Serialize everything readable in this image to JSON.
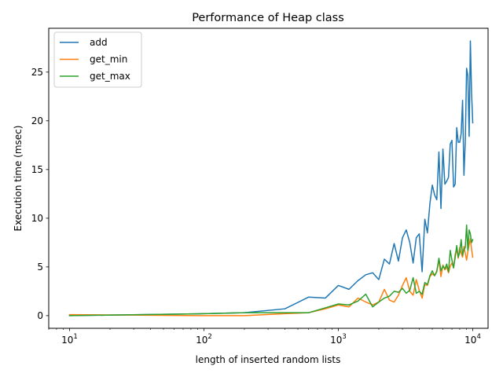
{
  "chart_data": {
    "type": "line",
    "title": "Performance of Heap class",
    "xlabel": "length of inserted random lists",
    "ylabel": "Execution time (msec)",
    "xscale": "log",
    "xlim": [
      7.0,
      13000
    ],
    "ylim": [
      -1.3,
      29.5
    ],
    "x_ticks": [
      {
        "value": 10,
        "base": "10",
        "exp": "1"
      },
      {
        "value": 100,
        "base": "10",
        "exp": "2"
      },
      {
        "value": 1000,
        "base": "10",
        "exp": "3"
      },
      {
        "value": 10000,
        "base": "10",
        "exp": "4"
      }
    ],
    "y_ticks": [
      0,
      5,
      10,
      15,
      20,
      25
    ],
    "legend_position": "top-left",
    "series": [
      {
        "name": "add",
        "color": "#1f77b4",
        "x": [
          10,
          100,
          200,
          400,
          600,
          800,
          1000,
          1200,
          1400,
          1600,
          1800,
          2000,
          2200,
          2400,
          2600,
          2800,
          3000,
          3200,
          3400,
          3600,
          3800,
          4000,
          4200,
          4400,
          4600,
          4800,
          5000,
          5200,
          5400,
          5600,
          5800,
          6000,
          6200,
          6400,
          6600,
          6800,
          7000,
          7200,
          7400,
          7600,
          7800,
          8000,
          8200,
          8400,
          8600,
          8800,
          9000,
          9200,
          9400,
          9600,
          9800,
          10000
        ],
        "y": [
          0.0,
          0.2,
          0.3,
          0.7,
          1.9,
          1.8,
          3.1,
          2.7,
          3.6,
          4.2,
          4.4,
          3.7,
          5.8,
          5.3,
          7.4,
          5.6,
          8.0,
          8.8,
          7.5,
          5.4,
          8.0,
          8.4,
          4.5,
          9.9,
          8.5,
          11.5,
          13.4,
          12.4,
          11.9,
          16.8,
          11.0,
          17.1,
          13.5,
          13.8,
          14.2,
          17.6,
          18.0,
          13.2,
          13.5,
          19.3,
          17.8,
          17.8,
          18.7,
          22.1,
          14.4,
          17.9,
          25.4,
          24.6,
          18.4,
          28.2,
          22.8,
          19.8
        ]
      },
      {
        "name": "get_min",
        "color": "#ff7f0e",
        "x": [
          10,
          100,
          200,
          400,
          600,
          800,
          1000,
          1200,
          1400,
          1600,
          1800,
          2000,
          2200,
          2400,
          2600,
          2800,
          3000,
          3200,
          3400,
          3600,
          3800,
          4000,
          4200,
          4400,
          4600,
          4800,
          5000,
          5200,
          5400,
          5600,
          5800,
          6000,
          6200,
          6400,
          6600,
          6800,
          7000,
          7200,
          7400,
          7600,
          7800,
          8000,
          8200,
          8400,
          8600,
          8800,
          9000,
          9200,
          9400,
          9600,
          9800,
          10000
        ],
        "y": [
          0.1,
          0.0,
          0.0,
          0.2,
          0.3,
          0.7,
          1.1,
          0.9,
          1.8,
          1.4,
          1.1,
          1.4,
          2.7,
          1.6,
          1.4,
          2.1,
          3.1,
          3.9,
          2.5,
          2.1,
          3.7,
          2.6,
          1.8,
          3.2,
          3.1,
          4.0,
          4.3,
          4.1,
          4.6,
          5.7,
          4.0,
          5.2,
          4.7,
          5.0,
          4.4,
          5.1,
          5.4,
          4.9,
          6.3,
          6.8,
          5.9,
          7.0,
          6.4,
          6.0,
          7.1,
          6.4,
          5.7,
          6.6,
          7.3,
          7.9,
          6.8,
          6.0
        ]
      },
      {
        "name": "get_max",
        "color": "#2ca02c",
        "x": [
          10,
          100,
          200,
          400,
          600,
          800,
          1000,
          1200,
          1400,
          1600,
          1800,
          2000,
          2200,
          2400,
          2600,
          2800,
          3000,
          3200,
          3400,
          3600,
          3800,
          4000,
          4200,
          4400,
          4600,
          4800,
          5000,
          5200,
          5400,
          5600,
          5800,
          6000,
          6200,
          6400,
          6600,
          6800,
          7000,
          7200,
          7400,
          7600,
          7800,
          8000,
          8200,
          8400,
          8600,
          8800,
          9000,
          9200,
          9400,
          9600,
          9800,
          10000
        ],
        "y": [
          0.0,
          0.2,
          0.3,
          0.3,
          0.3,
          0.8,
          1.2,
          1.1,
          1.5,
          2.2,
          0.9,
          1.4,
          1.8,
          2.0,
          2.5,
          2.4,
          2.8,
          2.3,
          2.6,
          3.9,
          2.3,
          2.5,
          2.2,
          3.4,
          3.2,
          4.1,
          4.6,
          4.1,
          4.5,
          5.9,
          4.6,
          5.1,
          4.8,
          5.3,
          4.5,
          6.7,
          5.7,
          4.9,
          6.0,
          7.2,
          6.0,
          6.5,
          7.8,
          6.2,
          6.8,
          7.0,
          9.3,
          6.7,
          8.8,
          8.4,
          7.5,
          7.8
        ]
      }
    ]
  }
}
